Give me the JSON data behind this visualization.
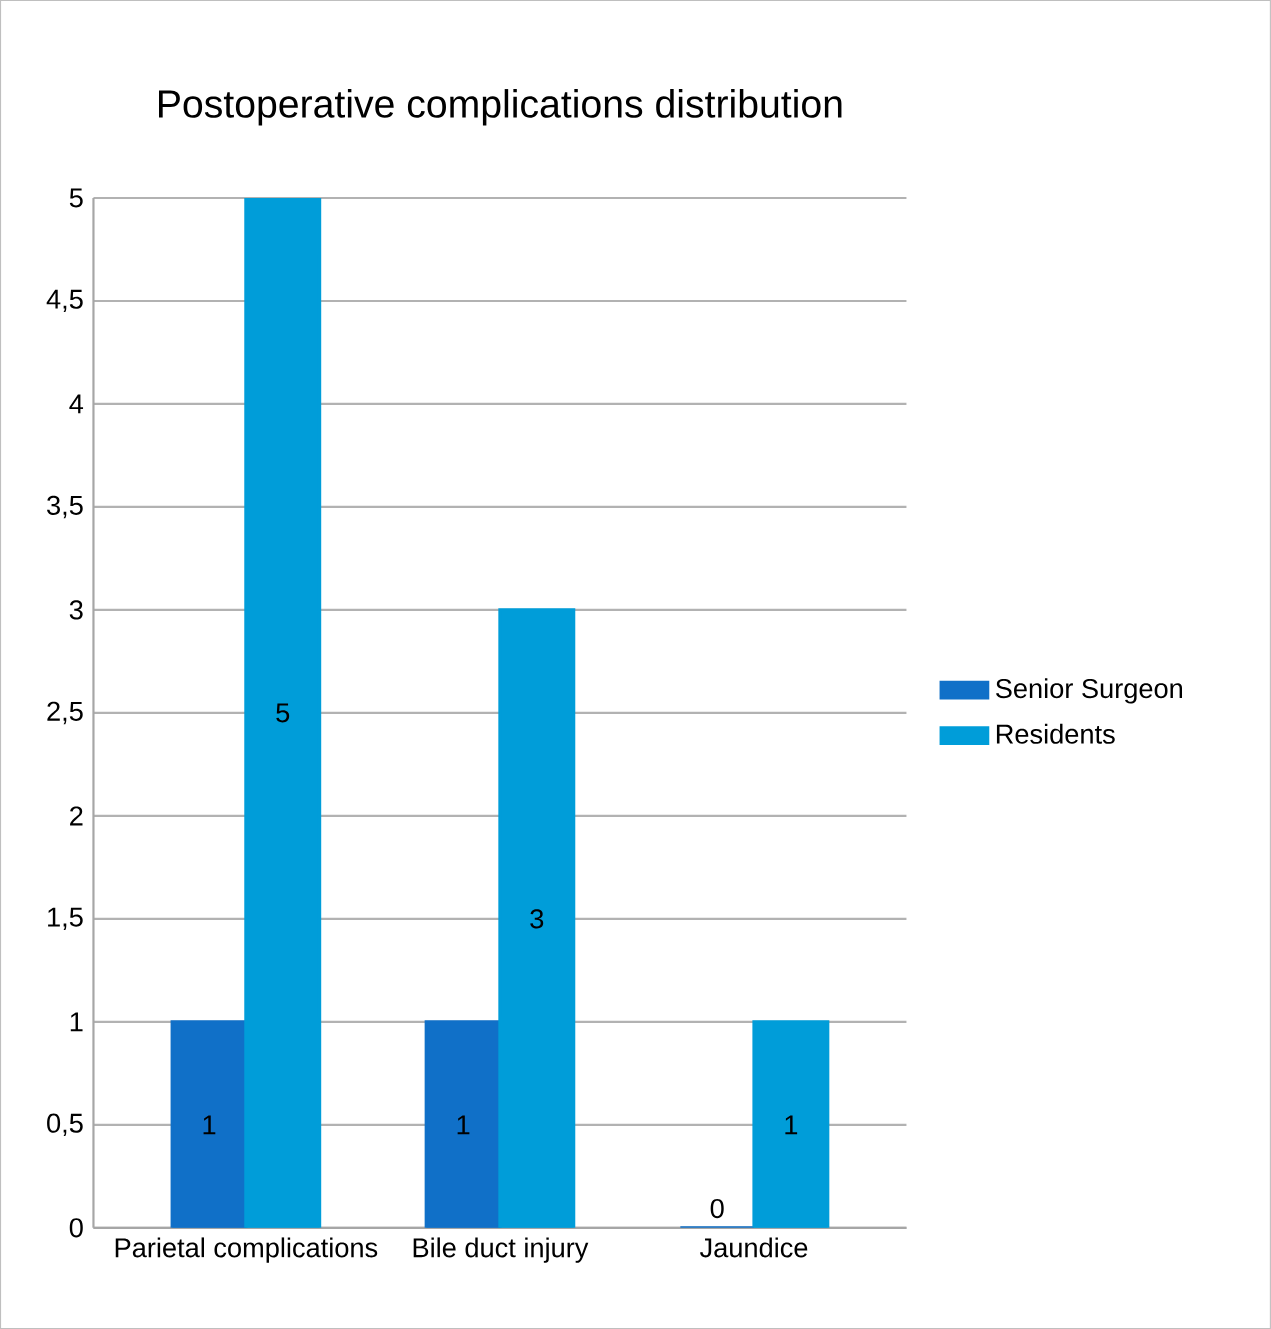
{
  "chart_data": {
    "type": "bar",
    "title": "Postoperative complications distribution",
    "categories": [
      "Parietal complications",
      "Bile duct injury",
      "Jaundice"
    ],
    "series": [
      {
        "name": "Senior Surgeon",
        "color": "#1070c8",
        "values": [
          1,
          1,
          0
        ]
      },
      {
        "name": "Residents",
        "color": "#009dd9",
        "values": [
          5,
          3,
          1
        ]
      }
    ],
    "ylim": [
      0,
      5
    ],
    "yticks": [
      0,
      {
        "value": 0.5,
        "label": "0,5"
      },
      1,
      {
        "value": 1.5,
        "label": "1,5"
      },
      2,
      {
        "value": 2.5,
        "label": "2,5"
      },
      3,
      {
        "value": 3.5,
        "label": "3,5"
      },
      4,
      {
        "value": 4.5,
        "label": "4,5"
      },
      5
    ],
    "grid": "y",
    "legend": "right",
    "data_labels": true
  }
}
